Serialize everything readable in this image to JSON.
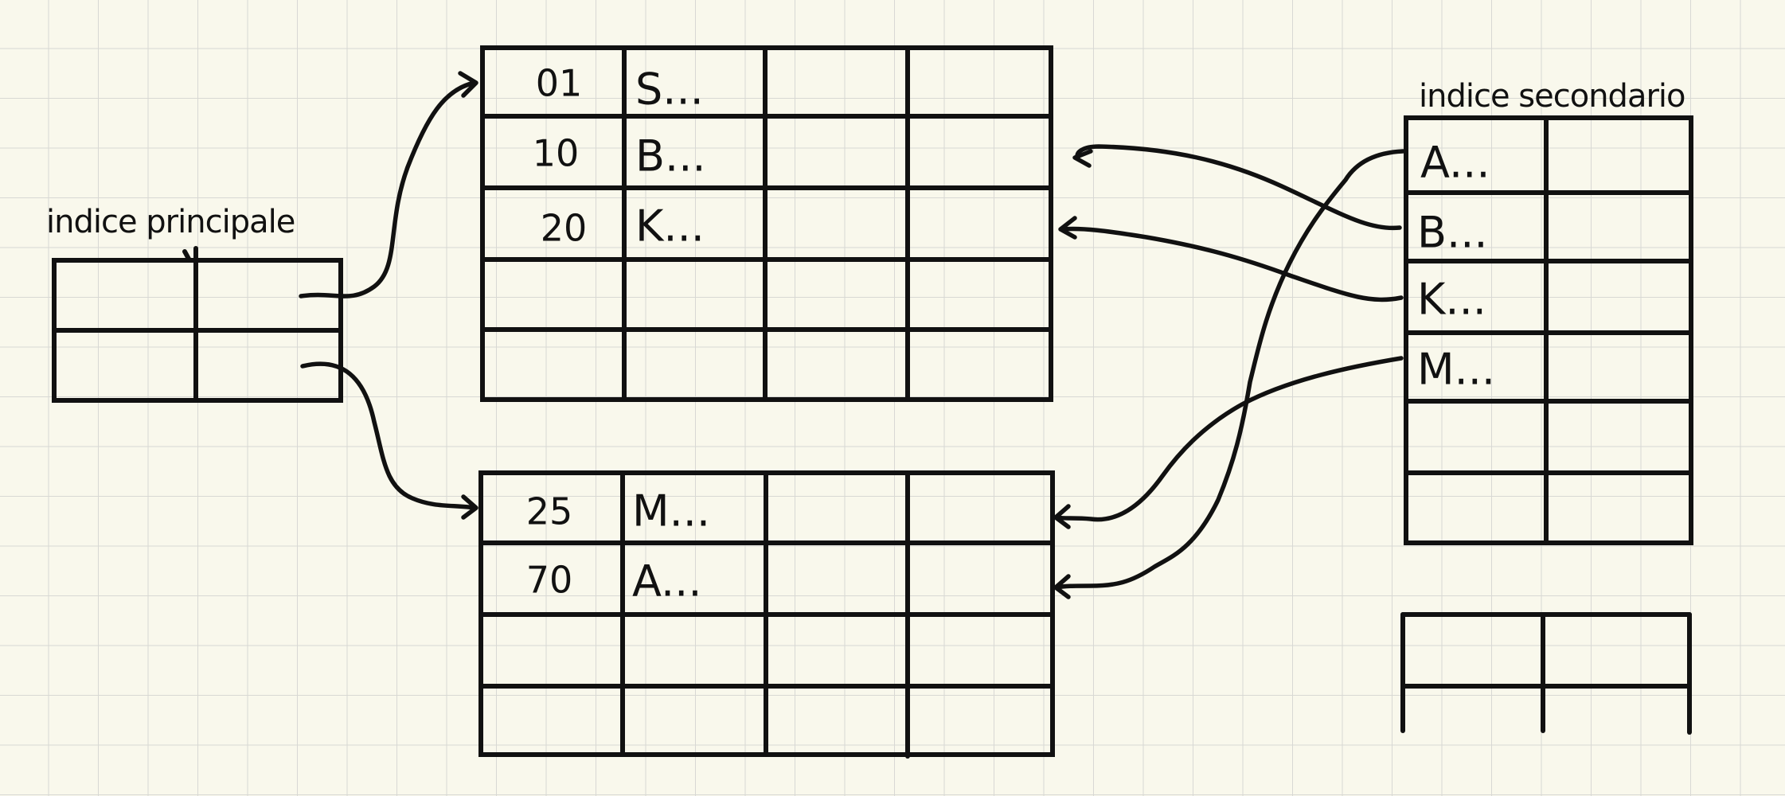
{
  "labels": {
    "primary_index": "indice principale",
    "secondary_index": "indice secondario"
  },
  "data_block_1": {
    "rows": [
      {
        "num": "01",
        "key": "S..."
      },
      {
        "num": "10",
        "key": "B..."
      },
      {
        "num": "20",
        "key": "K..."
      },
      {
        "num": "",
        "key": ""
      },
      {
        "num": "",
        "key": ""
      }
    ]
  },
  "data_block_2": {
    "rows": [
      {
        "num": "25",
        "key": "M..."
      },
      {
        "num": "70",
        "key": "A..."
      },
      {
        "num": "",
        "key": ""
      },
      {
        "num": "",
        "key": ""
      }
    ]
  },
  "secondary_index": {
    "rows": [
      {
        "key": "A..."
      },
      {
        "key": "B..."
      },
      {
        "key": "K..."
      },
      {
        "key": "M..."
      },
      {
        "key": ""
      },
      {
        "key": ""
      }
    ]
  },
  "colors": {
    "background": "#f9f8ec",
    "grid": "#d8d8d4",
    "ink": "#111111"
  }
}
